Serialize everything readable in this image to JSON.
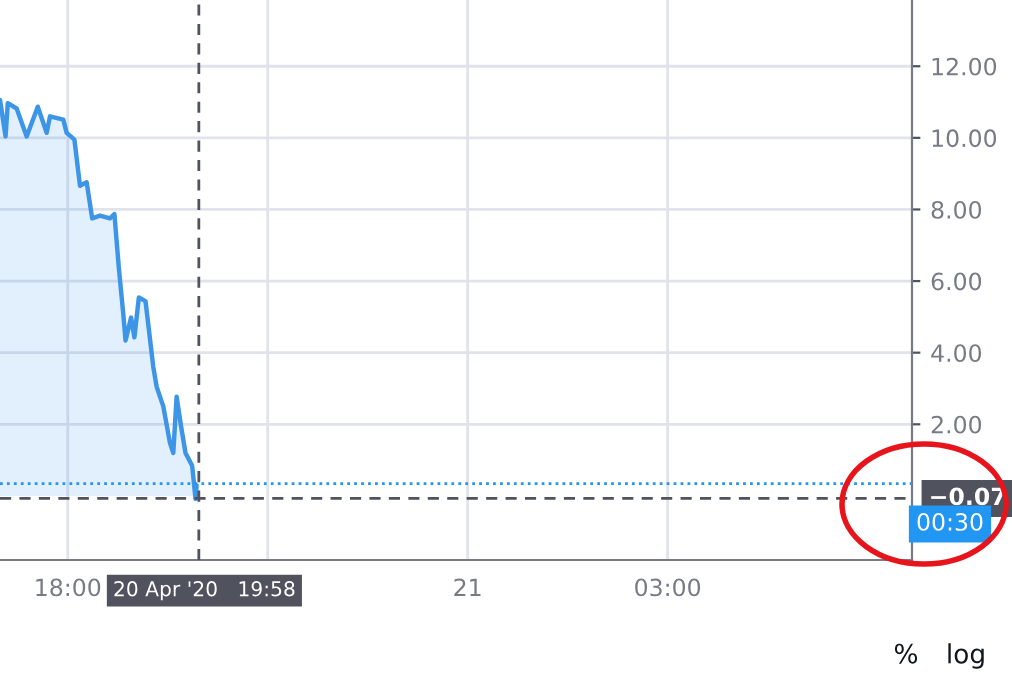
{
  "chart_data": {
    "type": "area",
    "x": [
      "2020-04-20T16:59",
      "2020-04-20T17:04",
      "2020-04-20T17:06",
      "2020-04-20T17:14",
      "2020-04-20T17:23",
      "2020-04-20T17:33",
      "2020-04-20T17:41",
      "2020-04-20T17:44",
      "2020-04-20T17:56",
      "2020-04-20T17:59",
      "2020-04-20T18:06",
      "2020-04-20T18:11",
      "2020-04-20T18:17",
      "2020-04-20T18:22",
      "2020-04-20T18:29",
      "2020-04-20T18:38",
      "2020-04-20T18:42",
      "2020-04-20T18:46",
      "2020-04-20T18:50",
      "2020-04-20T18:52",
      "2020-04-20T18:57",
      "2020-04-20T19:00",
      "2020-04-20T19:04",
      "2020-04-20T19:10",
      "2020-04-20T19:17",
      "2020-04-20T19:20",
      "2020-04-20T19:26",
      "2020-04-20T19:32",
      "2020-04-20T19:35",
      "2020-04-20T19:38",
      "2020-04-20T19:42",
      "2020-04-20T19:46",
      "2020-04-20T19:52",
      "2020-04-20T19:55",
      "2020-04-20T19:56"
    ],
    "series": [
      {
        "color": "#3d95e8",
        "values": [
          11.06,
          10.04,
          10.97,
          10.82,
          10.04,
          10.87,
          10.14,
          10.6,
          10.51,
          10.14,
          9.95,
          8.66,
          8.76,
          7.75,
          7.83,
          7.75,
          7.87,
          6.36,
          5.07,
          4.34,
          4.98,
          4.43,
          5.54,
          5.44,
          3.6,
          3.05,
          2.5,
          1.48,
          1.2,
          2.77,
          1.94,
          1.2,
          0.84,
          -0.08,
          0.29
        ]
      }
    ],
    "xlim": [
      "2020-04-20T16:59",
      "2020-04-21T06:40"
    ],
    "xticks": [
      {
        "value": "2020-04-20T18:00",
        "label": "18:00"
      },
      {
        "value": "2020-04-20T21:00",
        "label": null
      },
      {
        "value": "2020-04-21",
        "label": "21"
      },
      {
        "value": "2020-04-21T03:00",
        "label": "03:00"
      }
    ],
    "ylim": [
      -1.79,
      13.85
    ],
    "yticks": [
      {
        "value": 2,
        "label": "2.00"
      },
      {
        "value": 4,
        "label": "4.00"
      },
      {
        "value": 6,
        "label": "6.00"
      },
      {
        "value": 8,
        "label": "8.00"
      },
      {
        "value": 10,
        "label": "10.00"
      },
      {
        "value": 12,
        "label": "12.00"
      }
    ],
    "grid": true,
    "ref_lines": [
      {
        "axis": "x",
        "value": "2020-04-20T19:58",
        "label": "20 Apr '20   19:58",
        "color": "#50535e",
        "line_style": "dashed"
      },
      {
        "axis": "y",
        "value": -0.07,
        "label": "−0.07",
        "color": "#50535e",
        "line_style": "dashed"
      },
      {
        "axis": "y",
        "value": 0.34,
        "color": "#2196f3",
        "line_style": "dotted"
      }
    ],
    "annotations": [
      "00:30",
      "%",
      "log"
    ]
  }
}
